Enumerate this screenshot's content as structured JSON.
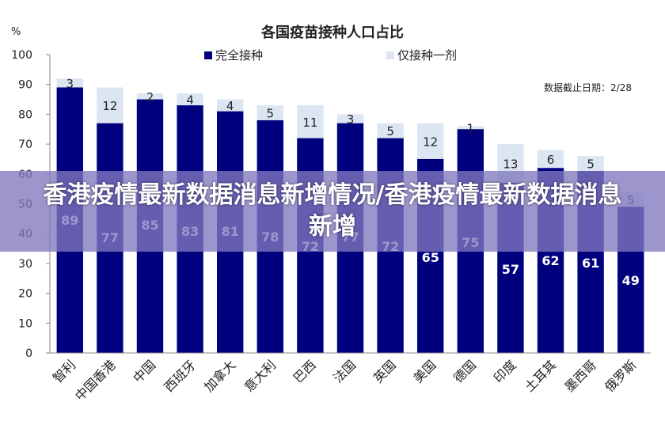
{
  "banner": {
    "title": "香港疫情最新数据消息新增情况/香港疫情最新数据消息新增"
  },
  "chart_data": {
    "type": "bar",
    "stacked": true,
    "title": "各国疫苗接种人口占比",
    "ylabel": "%",
    "note": "数据截止日期：2/28",
    "ylim": [
      0,
      100
    ],
    "yticks": [
      0,
      10,
      20,
      30,
      40,
      50,
      60,
      70,
      80,
      90,
      100
    ],
    "grid": false,
    "legend_position": "top",
    "categories": [
      "智利",
      "中国香港",
      "中国",
      "西班牙",
      "加拿大",
      "意大利",
      "巴西",
      "法国",
      "英国",
      "美国",
      "德国",
      "印度",
      "土耳其",
      "墨西哥",
      "俄罗斯"
    ],
    "series": [
      {
        "name": "完全接种",
        "color": "#00007f",
        "values": [
          89,
          77,
          85,
          83,
          81,
          78,
          72,
          77,
          72,
          65,
          75,
          57,
          62,
          61,
          49
        ]
      },
      {
        "name": "仅接种一剂",
        "color": "#dce6f2",
        "values": [
          3,
          12,
          2,
          4,
          4,
          5,
          11,
          3,
          5,
          12,
          1,
          13,
          6,
          5,
          5
        ]
      }
    ]
  }
}
